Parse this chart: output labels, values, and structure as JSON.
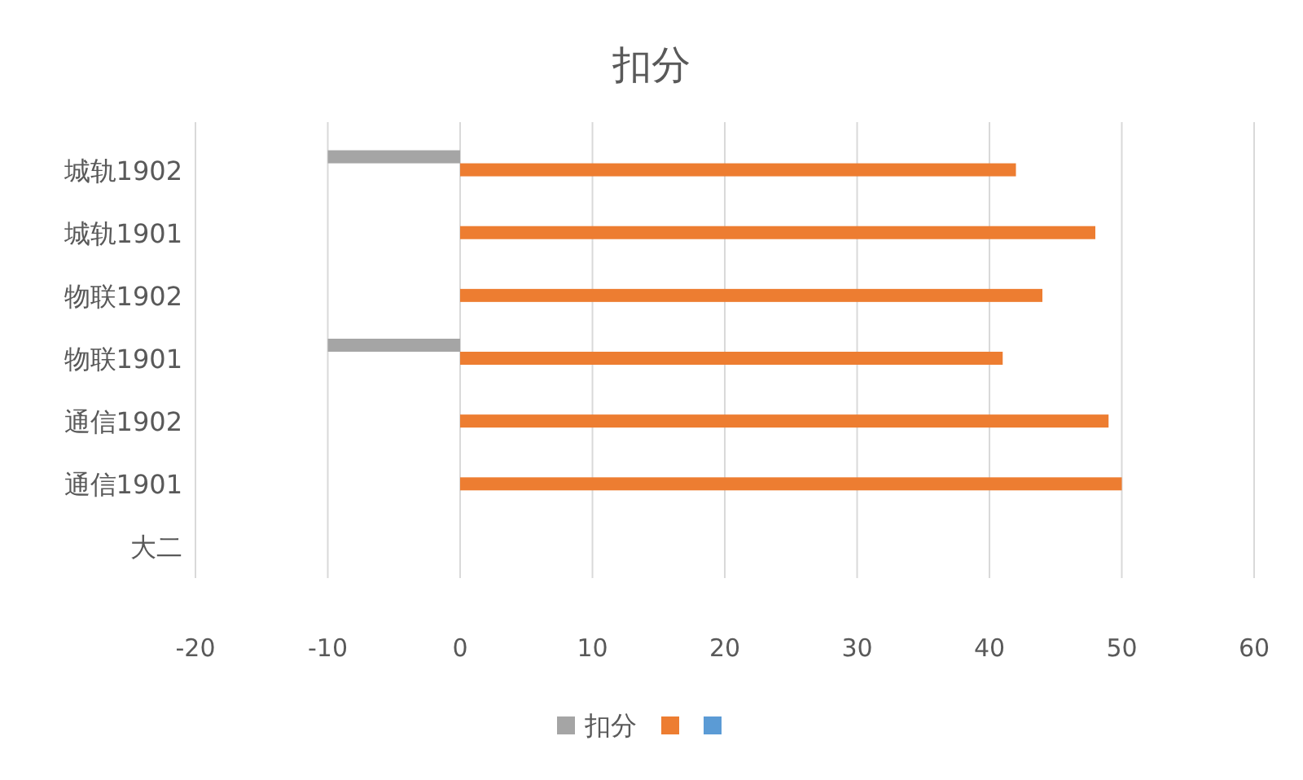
{
  "chart_data": {
    "type": "bar",
    "orientation": "horizontal",
    "title": "扣分",
    "categories": [
      "城轨1902",
      "城轨1901",
      "物联1902",
      "物联1901",
      "通信1902",
      "通信1901",
      "大二"
    ],
    "series": [
      {
        "name": "扣分",
        "color": "#a5a5a5",
        "values": [
          -10,
          null,
          null,
          -10,
          null,
          null,
          null
        ]
      },
      {
        "color": "#ed7d31",
        "values": [
          42,
          48,
          44,
          41,
          49,
          50,
          null
        ]
      },
      {
        "color": "#5b9bd5",
        "values": [
          null,
          null,
          null,
          null,
          null,
          null,
          null
        ]
      }
    ],
    "xlim": [
      -20,
      60
    ],
    "xticks": [
      -20,
      -10,
      0,
      10,
      20,
      30,
      40,
      50,
      60
    ],
    "grid": "x",
    "legend": "bottom"
  }
}
